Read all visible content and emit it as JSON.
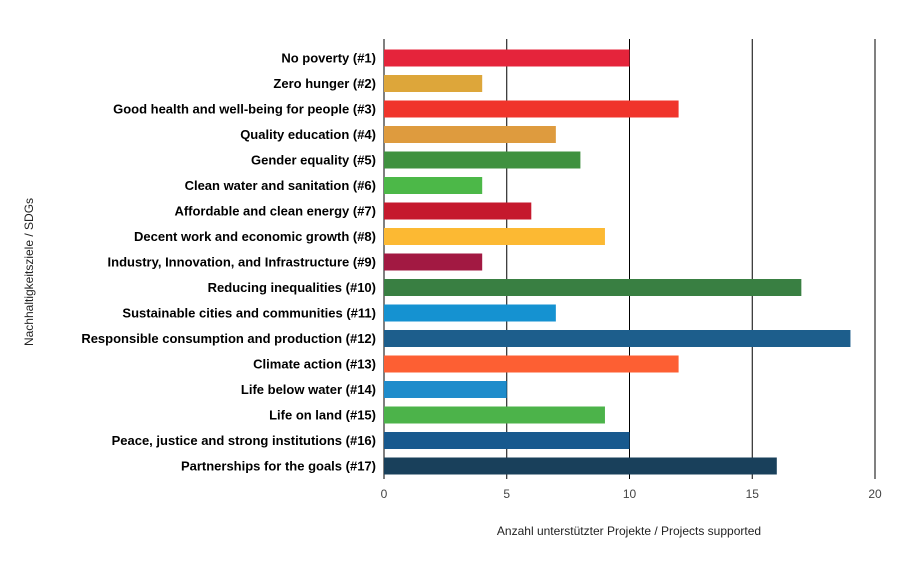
{
  "chart_data": {
    "type": "bar",
    "orientation": "horizontal",
    "xlabel": "Anzahl unterstützter Projekte / Projects supported",
    "ylabel": "Nachhaltigkeitsziele / SDGs",
    "xlim": [
      0,
      20
    ],
    "xticks": [
      "0",
      "5",
      "10",
      "15",
      "20"
    ],
    "grid": true,
    "categories": [
      "No poverty (#1)",
      "Zero hunger (#2)",
      "Good health and well-being for people (#3)",
      "Quality education (#4)",
      "Gender equality (#5)",
      "Clean water and sanitation (#6)",
      "Affordable and clean energy (#7)",
      "Decent work and economic growth (#8)",
      "Industry, Innovation, and Infrastructure (#9)",
      "Reducing inequalities (#10)",
      "Sustainable cities and communities (#11)",
      "Responsible consumption and production (#12)",
      "Climate action (#13)",
      "Life below water (#14)",
      "Life on land (#15)",
      "Peace, justice and strong institutions (#16)",
      "Partnerships for the goals (#17)"
    ],
    "values": [
      10,
      4,
      12,
      7,
      8,
      4,
      6,
      9,
      4,
      17,
      7,
      19,
      12,
      5,
      9,
      10,
      16
    ],
    "colors": [
      "#E5243B",
      "#DDA63A",
      "#F0342B",
      "#DE9B3E",
      "#3F913F",
      "#4CB848",
      "#C5192D",
      "#FCB933",
      "#A21942",
      "#397F42",
      "#1592D1",
      "#1D5E8C",
      "#FD5F33",
      "#1F8CCB",
      "#4CB34A",
      "#18598E",
      "#19405B"
    ]
  }
}
